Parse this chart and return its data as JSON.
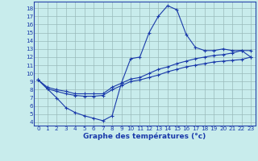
{
  "xlabel": "Graphe des températures (°c)",
  "background_color": "#c8ecec",
  "line_color": "#1a3aaa",
  "xlim_min": -0.5,
  "xlim_max": 23.5,
  "ylim_min": 3.6,
  "ylim_max": 18.8,
  "xticks": [
    0,
    1,
    2,
    3,
    4,
    5,
    6,
    7,
    8,
    9,
    10,
    11,
    12,
    13,
    14,
    15,
    16,
    17,
    18,
    19,
    20,
    21,
    22,
    23
  ],
  "yticks": [
    4,
    5,
    6,
    7,
    8,
    9,
    10,
    11,
    12,
    13,
    14,
    15,
    16,
    17,
    18
  ],
  "curve_spike_x": [
    0,
    1,
    2,
    3,
    4,
    5,
    6,
    7,
    8,
    9,
    10,
    11,
    12,
    13,
    14,
    15,
    16,
    17,
    18,
    19,
    20,
    21,
    22,
    23
  ],
  "curve_spike_y": [
    9.2,
    8.1,
    7.0,
    5.8,
    5.2,
    4.8,
    4.5,
    4.2,
    4.8,
    8.8,
    11.8,
    12.0,
    15.0,
    17.0,
    18.3,
    17.8,
    14.8,
    13.2,
    12.8,
    12.8,
    13.0,
    12.8,
    12.8,
    12.0
  ],
  "curve_low_x": [
    0,
    1,
    2,
    3,
    4,
    5,
    6,
    7,
    8,
    9,
    10,
    11,
    12,
    13,
    14,
    15,
    16,
    17,
    18,
    19,
    20,
    21,
    22,
    23
  ],
  "curve_low_y": [
    9.2,
    8.1,
    7.8,
    7.5,
    7.3,
    7.2,
    7.2,
    7.3,
    8.0,
    8.5,
    9.0,
    9.2,
    9.5,
    9.8,
    10.2,
    10.5,
    10.8,
    11.0,
    11.2,
    11.4,
    11.5,
    11.6,
    11.7,
    12.0
  ],
  "curve_high_x": [
    0,
    1,
    2,
    3,
    4,
    5,
    6,
    7,
    8,
    9,
    10,
    11,
    12,
    13,
    14,
    15,
    16,
    17,
    18,
    19,
    20,
    21,
    22,
    23
  ],
  "curve_high_y": [
    9.2,
    8.3,
    8.0,
    7.8,
    7.5,
    7.5,
    7.5,
    7.5,
    8.3,
    8.8,
    9.3,
    9.5,
    10.0,
    10.5,
    10.8,
    11.2,
    11.5,
    11.8,
    12.0,
    12.2,
    12.3,
    12.5,
    12.8,
    12.8
  ],
  "grid_color": "#9ababa",
  "tick_fontsize": 5.2,
  "xlabel_fontsize": 6.5,
  "linewidth": 0.8,
  "markersize": 3.5
}
